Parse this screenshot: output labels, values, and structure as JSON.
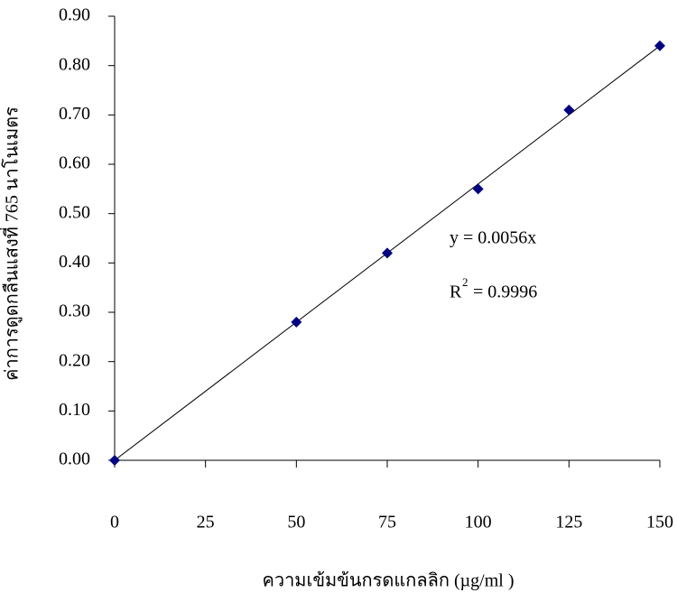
{
  "chart_data": {
    "type": "scatter",
    "x_label": "ความเข้มข้นกรดแกลลิก (µg/ml )",
    "y_label": "ค่าการดูดกลืนแสงที่ 765 นาโนเมตร",
    "series": [
      {
        "color": "#000080",
        "x": [
          0,
          50,
          75,
          100,
          125,
          150
        ],
        "values": [
          0,
          0.28,
          0.42,
          0.55,
          0.71,
          0.84
        ]
      }
    ],
    "trendline": {
      "slope": 0.0056,
      "label": "y = 0.0056x",
      "r2_symbol": "R",
      "r2_exponent": "2",
      "r2_text": " = 0.9996",
      "color": "#000000"
    },
    "xlim": [
      0,
      150
    ],
    "xticks": [
      0,
      25,
      50,
      75,
      100,
      125,
      150
    ],
    "ylim": [
      0,
      0.9
    ],
    "yticks": [
      {
        "value": 0,
        "label": "0.00"
      },
      {
        "value": 0.1,
        "label": "0.10"
      },
      {
        "value": 0.2,
        "label": "0.20"
      },
      {
        "value": 0.3,
        "label": "0.30"
      },
      {
        "value": 0.4,
        "label": "0.40"
      },
      {
        "value": 0.5,
        "label": "0.50"
      },
      {
        "value": 0.6,
        "label": "0.60"
      },
      {
        "value": 0.7,
        "label": "0.70"
      },
      {
        "value": 0.8,
        "label": "0.80"
      },
      {
        "value": 0.9,
        "label": "0.90"
      }
    ],
    "grid": false
  }
}
